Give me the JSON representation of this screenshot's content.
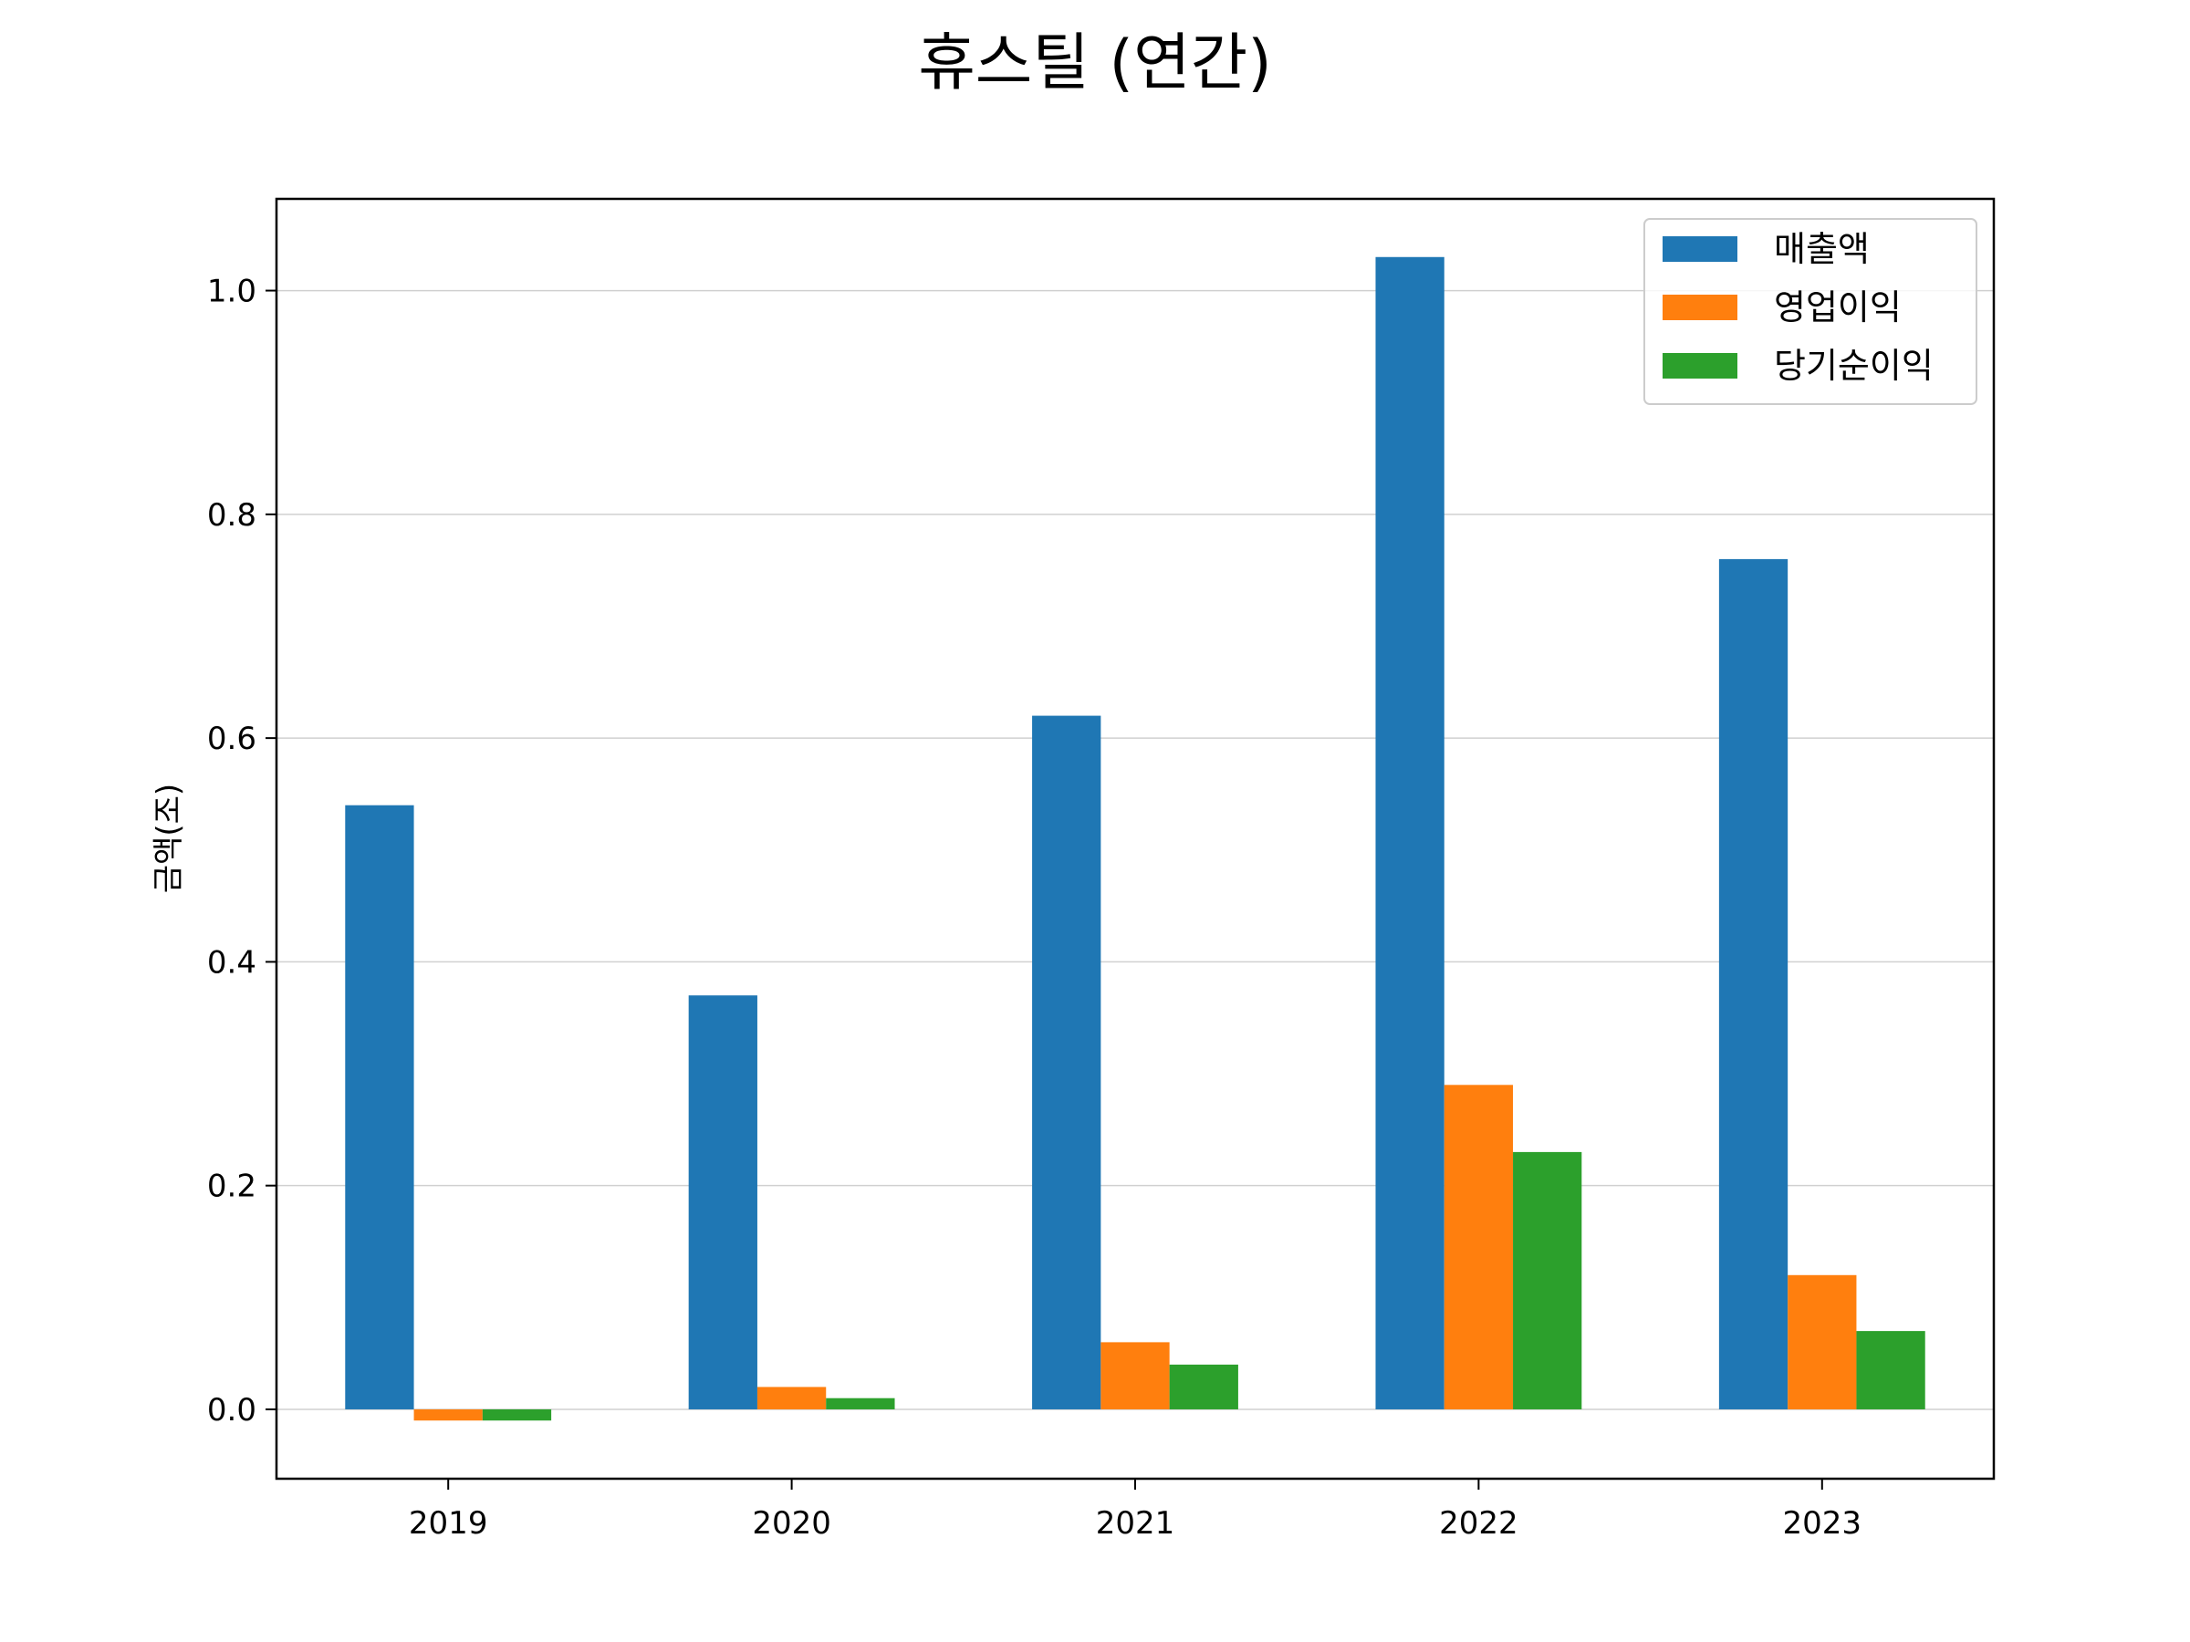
{
  "chart_data": {
    "type": "bar",
    "title": "휴스틸 (연간)",
    "xlabel": "",
    "ylabel": "금액(조)",
    "categories": [
      "2019",
      "2020",
      "2021",
      "2022",
      "2023"
    ],
    "series": [
      {
        "name": "매출액",
        "color": "#1f77b4",
        "values": [
          0.54,
          0.37,
          0.62,
          1.03,
          0.76
        ]
      },
      {
        "name": "영업이익",
        "color": "#ff7f0e",
        "values": [
          -0.01,
          0.02,
          0.06,
          0.29,
          0.12
        ]
      },
      {
        "name": "당기순이익",
        "color": "#2ca02c",
        "values": [
          -0.01,
          0.01,
          0.04,
          0.23,
          0.07
        ]
      }
    ],
    "ylim": [
      -0.062,
      1.082
    ],
    "yticks": [
      0.0,
      0.2,
      0.4,
      0.6,
      0.8,
      1.0
    ],
    "ytick_labels": [
      "0.0",
      "0.2",
      "0.4",
      "0.6",
      "0.8",
      "1.0"
    ],
    "grid": "y",
    "legend_position": "top-right"
  }
}
